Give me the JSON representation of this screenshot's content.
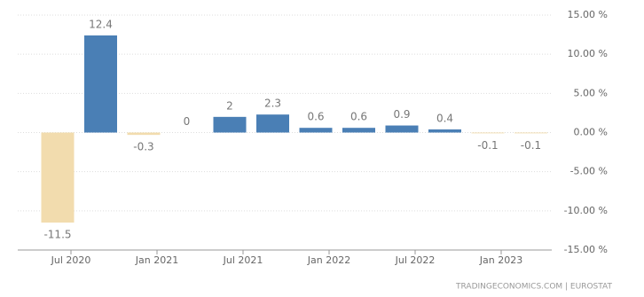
{
  "chart_data": {
    "type": "bar",
    "categories": [
      "Jul 2020",
      null,
      "Jan 2021",
      null,
      "Jul 2021",
      null,
      "Jan 2022",
      null,
      "Jul 2022",
      null,
      "Jan 2023",
      null
    ],
    "values": [
      -11.5,
      12.4,
      -0.3,
      0,
      2,
      2.3,
      0.6,
      0.6,
      0.9,
      0.4,
      -0.1,
      -0.1
    ],
    "color": "#4a7fb5",
    "negative_color": "#f2dcae",
    "ylim": [
      -15,
      15
    ],
    "yticks": [
      {
        "value": 15,
        "label": "15.00 %"
      },
      {
        "value": 10,
        "label": "10.00 %"
      },
      {
        "value": 5,
        "label": "5.00 %"
      },
      {
        "value": 0,
        "label": "0.00 %"
      },
      {
        "value": -5,
        "label": "-5.00 %"
      },
      {
        "value": -10,
        "label": "-10.00 %"
      },
      {
        "value": -15,
        "label": "-15.00 %"
      }
    ],
    "grid": true,
    "source": "TRADINGECONOMICS.COM | EUROSTAT"
  }
}
